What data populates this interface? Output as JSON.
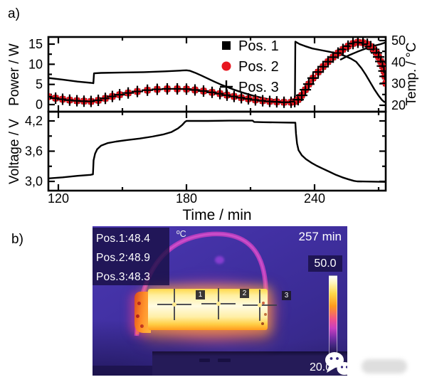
{
  "panel_a": {
    "label": "a)",
    "x_axis_title": "Time / min",
    "power_axis_title": "Power / W",
    "temp_axis_title": "Temp. / °C",
    "voltage_axis_title": "Voltage / V",
    "legend": [
      {
        "label": "Pos. 1",
        "marker": "square",
        "color": "#000000"
      },
      {
        "label": "Pos. 2",
        "marker": "circle",
        "color": "#e8161f"
      },
      {
        "label": "Pos. 3",
        "marker": "plus",
        "color": "#000000"
      }
    ]
  },
  "chart_data": [
    {
      "id": "power-temperature",
      "type": "line",
      "xlabel": "Time / min",
      "xlim": [
        115.3,
        273.3
      ],
      "xticks": [
        120,
        180,
        240
      ],
      "xminor": [
        150,
        210,
        270
      ],
      "left_axis": {
        "label": "Power / W",
        "ticks": [
          0,
          5,
          10,
          15
        ],
        "minor": [
          2.5,
          7.5,
          12.5
        ],
        "lim": [
          -1.8,
          16.8
        ]
      },
      "right_axis": {
        "label": "Temp. / °C",
        "ticks": [
          20,
          30,
          40,
          50
        ],
        "minor": [
          25,
          35,
          45
        ],
        "lim": [
          17.1,
          51.4
        ]
      },
      "grid": false,
      "legend_position": "upper center inside",
      "power_line": [
        [
          115.3,
          6.6
        ],
        [
          122,
          6.2
        ],
        [
          129,
          5.7
        ],
        [
          136,
          5.35
        ],
        [
          136.4,
          5.3
        ],
        [
          136.7,
          7.75
        ],
        [
          140,
          7.85
        ],
        [
          150,
          7.95
        ],
        [
          160,
          8.05
        ],
        [
          170,
          8.25
        ],
        [
          178,
          8.45
        ],
        [
          180,
          8.5
        ],
        [
          181.5,
          8.4
        ],
        [
          184,
          7.9
        ],
        [
          187,
          7.2
        ],
        [
          190,
          6.45
        ],
        [
          193,
          5.7
        ],
        [
          196,
          5.0
        ],
        [
          199,
          4.35
        ],
        [
          202,
          3.75
        ],
        [
          205,
          3.2
        ],
        [
          208,
          2.7
        ],
        [
          211,
          2.25
        ],
        [
          214,
          1.85
        ],
        [
          217,
          1.5
        ],
        [
          220,
          1.2
        ],
        [
          223,
          0.92
        ],
        [
          226,
          0.7
        ],
        [
          229,
          0.55
        ],
        [
          230.8,
          0.5
        ],
        [
          231,
          15.6
        ],
        [
          233,
          15.0
        ],
        [
          235.5,
          14.5
        ],
        [
          239,
          13.9
        ],
        [
          243,
          13.5
        ],
        [
          247,
          13.1
        ],
        [
          251,
          12.6
        ],
        [
          254,
          12.1
        ],
        [
          257,
          11.4
        ],
        [
          259.5,
          10.6
        ],
        [
          262,
          9.0
        ],
        [
          264,
          7.4
        ],
        [
          266,
          5.6
        ],
        [
          268,
          3.8
        ],
        [
          270,
          2.2
        ],
        [
          271.5,
          1.2
        ],
        [
          272.5,
          0.7
        ],
        [
          273.3,
          0.55
        ]
      ],
      "power_line_end_segment": [
        [
          252,
          11.1
        ],
        [
          256,
          12.2
        ],
        [
          260,
          13.1
        ],
        [
          264,
          13.9
        ],
        [
          268,
          14.6
        ],
        [
          271,
          15.0
        ],
        [
          273.3,
          15.4
        ]
      ],
      "temperature_series_note": "Pos. 1 (square), Pos. 2 (circle), Pos. 3 (plus) overlap at the same values",
      "temperature_points": [
        [
          115.3,
          24.0
        ],
        [
          118.7,
          23.3
        ],
        [
          122,
          22.8
        ],
        [
          125.3,
          22.4
        ],
        [
          128.7,
          22.1
        ],
        [
          132,
          21.9
        ],
        [
          135.3,
          21.8
        ],
        [
          138.7,
          22.3
        ],
        [
          142,
          23.2
        ],
        [
          145.3,
          24.1
        ],
        [
          148.7,
          24.9
        ],
        [
          152.7,
          25.7
        ],
        [
          157,
          26.4
        ],
        [
          161.7,
          27.0
        ],
        [
          166.3,
          27.4
        ],
        [
          171,
          27.6
        ],
        [
          175.7,
          27.6
        ],
        [
          180,
          27.5
        ],
        [
          184,
          27.1
        ],
        [
          188,
          26.6
        ],
        [
          192,
          26.0
        ],
        [
          195.7,
          25.4
        ],
        [
          199,
          24.7
        ],
        [
          202.3,
          24.1
        ],
        [
          205.7,
          23.5
        ],
        [
          209,
          23.0
        ],
        [
          212.3,
          22.5
        ],
        [
          215.7,
          22.1
        ],
        [
          219,
          21.8
        ],
        [
          222.3,
          21.6
        ],
        [
          225.7,
          21.4
        ],
        [
          229,
          21.4
        ],
        [
          230.7,
          21.7
        ],
        [
          232.3,
          22.6
        ],
        [
          234,
          24.6
        ],
        [
          235.7,
          27.2
        ],
        [
          237.3,
          29.8
        ],
        [
          239.3,
          32.6
        ],
        [
          241.7,
          35.4
        ],
        [
          244,
          37.9
        ],
        [
          246.3,
          40.2
        ],
        [
          248.7,
          42.3
        ],
        [
          251,
          44.2
        ],
        [
          253.3,
          45.9
        ],
        [
          255.7,
          47.4
        ],
        [
          258,
          48.6
        ],
        [
          260.3,
          49.2
        ],
        [
          262.7,
          49.0
        ],
        [
          264.7,
          48.3
        ],
        [
          266.3,
          47.2
        ],
        [
          267.7,
          45.9
        ],
        [
          269,
          44.3
        ],
        [
          270,
          42.4
        ],
        [
          271,
          40.3
        ],
        [
          271.8,
          38.2
        ],
        [
          272.5,
          35.9
        ],
        [
          273,
          33.4
        ],
        [
          273.4,
          30.2
        ]
      ]
    },
    {
      "id": "voltage",
      "type": "line",
      "xlabel": "Time / min",
      "xlim": [
        115.3,
        273.3
      ],
      "ylabel": "Voltage / V",
      "yticks": [
        3.0,
        3.6,
        4.2
      ],
      "ytick_labels": [
        "3,0",
        "3,6",
        "4,2"
      ],
      "yminor": [
        3.3,
        3.9
      ],
      "ylim": [
        2.82,
        4.39
      ],
      "grid": false,
      "voltage_line": [
        [
          115.3,
          3.06
        ],
        [
          122,
          3.08
        ],
        [
          129,
          3.11
        ],
        [
          135,
          3.13
        ],
        [
          136.2,
          3.14
        ],
        [
          136.5,
          3.42
        ],
        [
          137.2,
          3.55
        ],
        [
          138.2,
          3.64
        ],
        [
          140,
          3.71
        ],
        [
          143,
          3.76
        ],
        [
          147,
          3.79
        ],
        [
          152,
          3.82
        ],
        [
          158,
          3.85
        ],
        [
          164,
          3.89
        ],
        [
          169,
          3.93
        ],
        [
          173,
          3.98
        ],
        [
          176,
          4.05
        ],
        [
          178,
          4.12
        ],
        [
          179.3,
          4.18
        ],
        [
          180,
          4.2
        ],
        [
          190,
          4.2
        ],
        [
          200,
          4.205
        ],
        [
          211,
          4.205
        ],
        [
          211.7,
          4.18
        ],
        [
          216,
          4.175
        ],
        [
          222,
          4.17
        ],
        [
          231,
          4.165
        ],
        [
          231.3,
          3.95
        ],
        [
          231.8,
          3.75
        ],
        [
          232.5,
          3.62
        ],
        [
          234,
          3.52
        ],
        [
          236,
          3.44
        ],
        [
          238.5,
          3.37
        ],
        [
          241,
          3.31
        ],
        [
          244,
          3.25
        ],
        [
          247,
          3.19
        ],
        [
          250,
          3.13
        ],
        [
          253,
          3.08
        ],
        [
          256,
          3.04
        ],
        [
          258.5,
          3.01
        ],
        [
          260,
          3.0
        ],
        [
          273.3,
          2.99
        ]
      ]
    }
  ],
  "panel_b": {
    "label": "b)",
    "readings": [
      "Pos.1:48.4",
      "Pos.2:48.9",
      "Pos.3:48.3"
    ],
    "unit": "ºC",
    "timestamp": "257 min",
    "scale_max": "50.0",
    "scale_min": "20.0",
    "spot_labels": [
      "1",
      "2",
      "3"
    ],
    "colors": {
      "background_purple": "#3f2f9e",
      "battery_hot_core": "#fffbe2",
      "battery_hot_edge": "#ff9a1e",
      "cable_magenta": "#c93fc2",
      "pedestal_dark": "#251b58",
      "readout_overlay": "#180f44"
    }
  }
}
